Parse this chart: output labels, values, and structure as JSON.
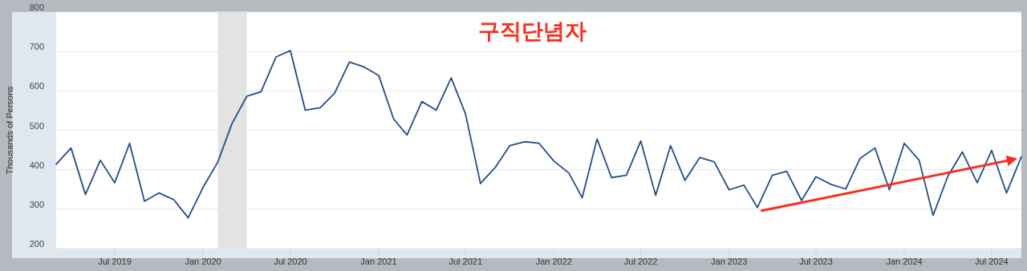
{
  "chart_data": {
    "type": "line",
    "title": "구직단념자",
    "ylabel": "Thousands of Persons",
    "x": [
      "2019-03",
      "2019-04",
      "2019-05",
      "2019-06",
      "2019-07",
      "2019-08",
      "2019-09",
      "2019-10",
      "2019-11",
      "2019-12",
      "2020-01",
      "2020-02",
      "2020-03",
      "2020-04",
      "2020-05",
      "2020-06",
      "2020-07",
      "2020-08",
      "2020-09",
      "2020-10",
      "2020-11",
      "2020-12",
      "2021-01",
      "2021-02",
      "2021-03",
      "2021-04",
      "2021-05",
      "2021-06",
      "2021-07",
      "2021-08",
      "2021-09",
      "2021-10",
      "2021-11",
      "2021-12",
      "2022-01",
      "2022-02",
      "2022-03",
      "2022-04",
      "2022-05",
      "2022-06",
      "2022-07",
      "2022-08",
      "2022-09",
      "2022-10",
      "2022-11",
      "2022-12",
      "2023-01",
      "2023-02",
      "2023-03",
      "2023-04",
      "2023-05",
      "2023-06",
      "2023-07",
      "2023-08",
      "2023-09",
      "2023-10",
      "2023-11",
      "2023-12",
      "2024-01",
      "2024-02",
      "2024-03",
      "2024-04",
      "2024-05",
      "2024-06",
      "2024-07",
      "2024-08",
      "2024-09"
    ],
    "series": [
      {
        "color": "#1f4e8c",
        "values": [
          414,
          455,
          337,
          424,
          367,
          467,
          320,
          341,
          324,
          278,
          355,
          420,
          516,
          586,
          598,
          686,
          702,
          551,
          557,
          594,
          673,
          661,
          639,
          529,
          488,
          573,
          551,
          633,
          541,
          365,
          406,
          461,
          471,
          467,
          422,
          392,
          329,
          478,
          380,
          386,
          473,
          335,
          461,
          373,
          431,
          420,
          349,
          361,
          304,
          386,
          396,
          322,
          382,
          363,
          351,
          429,
          455,
          349,
          467,
          424,
          284,
          384,
          445,
          367,
          449,
          341,
          433
        ]
      },
      {
        "type": "line",
        "color": "#ff2a1a",
        "x": [
          "2023-03-10",
          "2024-08-15"
        ],
        "values": [
          296,
          426
        ]
      }
    ],
    "xlim": [
      "2019-03",
      "2024-09"
    ],
    "xticks": [
      {
        "value": "2019-07",
        "label": "Jul 2019"
      },
      {
        "value": "2020-01",
        "label": "Jan 2020"
      },
      {
        "value": "2020-07",
        "label": "Jul 2020"
      },
      {
        "value": "2021-01",
        "label": "Jan 2021"
      },
      {
        "value": "2021-07",
        "label": "Jul 2021"
      },
      {
        "value": "2022-01",
        "label": "Jan 2022"
      },
      {
        "value": "2022-07",
        "label": "Jul 2022"
      },
      {
        "value": "2023-01",
        "label": "Jan 2023"
      },
      {
        "value": "2023-07",
        "label": "Jul 2023"
      },
      {
        "value": "2024-01",
        "label": "Jan 2024"
      },
      {
        "value": "2024-07",
        "label": "Jul 2024"
      }
    ],
    "ylim": [
      200,
      800
    ],
    "yticks": [
      200,
      300,
      400,
      500,
      600,
      700,
      800
    ],
    "grid": "y",
    "bands": [
      {
        "axis": "x",
        "from": "2020-02",
        "to": "2020-04",
        "color": "#e3e3e3"
      }
    ]
  }
}
